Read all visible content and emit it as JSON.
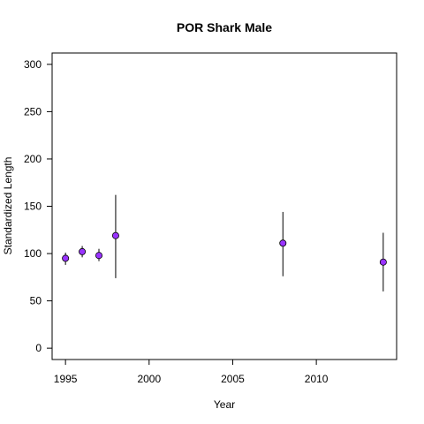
{
  "chart_data": {
    "type": "scatter",
    "title": "POR Shark Male",
    "xlabel": "Year",
    "ylabel": "Standardized Length",
    "xlim": [
      1994.2,
      2014.8
    ],
    "ylim": [
      -12,
      312
    ],
    "x_ticks": [
      1995,
      2000,
      2005,
      2010
    ],
    "y_ticks": [
      0,
      50,
      100,
      150,
      200,
      250,
      300
    ],
    "grid": false,
    "legend": "none",
    "point_color": "#9933ff",
    "points": [
      {
        "x": 1995,
        "y": 95,
        "lo": 88,
        "hi": 101
      },
      {
        "x": 1996,
        "y": 102,
        "lo": 96,
        "hi": 108
      },
      {
        "x": 1997,
        "y": 98,
        "lo": 92,
        "hi": 105
      },
      {
        "x": 1998,
        "y": 119,
        "lo": 74,
        "hi": 162
      },
      {
        "x": 2008,
        "y": 111,
        "lo": 76,
        "hi": 144
      },
      {
        "x": 2014,
        "y": 91,
        "lo": 60,
        "hi": 122
      }
    ]
  }
}
